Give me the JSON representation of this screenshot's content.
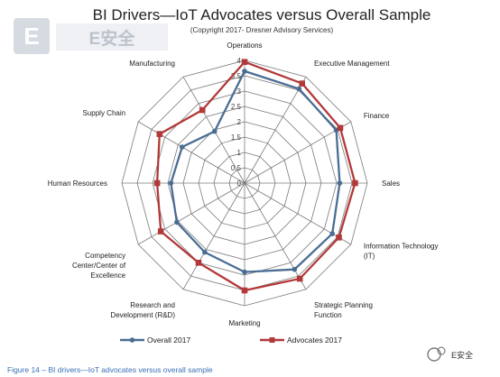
{
  "chart_data": {
    "type": "radar",
    "title": "BI Drivers—IoT Advocates versus Overall Sample",
    "subtitle": "(Copyright 2017- Dresner Advisory Services)",
    "categories": [
      "Operations",
      "Executive Management",
      "Finance",
      "Sales",
      "Information Technology (IT)",
      "Strategic Planning Function",
      "Marketing",
      "Research and Development (R&D)",
      "Competency Center/Center of Excellence",
      "Human Resources",
      "Supply Chain",
      "Manufacturing"
    ],
    "category_lines": [
      [
        "Operations"
      ],
      [
        "Executive Management"
      ],
      [
        "Finance"
      ],
      [
        "Sales"
      ],
      [
        "Information Technology",
        "(IT)"
      ],
      [
        "Strategic Planning",
        "Function"
      ],
      [
        "Marketing"
      ],
      [
        "Research and",
        "Development (R&D)"
      ],
      [
        "Competency",
        "Center/Center of",
        "Excellence"
      ],
      [
        "Human Resources"
      ],
      [
        "Supply Chain"
      ],
      [
        "Manufacturing"
      ]
    ],
    "r_ticks": [
      "0",
      "0.5",
      "1",
      "1.5",
      "2",
      "2.5",
      "3",
      "3.5",
      "4"
    ],
    "r_range": [
      0,
      4
    ],
    "series": [
      {
        "name": "Overall 2017",
        "color": "#4a6d93",
        "marker": "circle",
        "values": [
          3.65,
          3.55,
          3.45,
          3.1,
          3.3,
          3.25,
          2.9,
          2.6,
          2.55,
          2.4,
          2.35,
          1.95
        ]
      },
      {
        "name": "Advocates 2017",
        "color": "#b2393a",
        "marker": "square",
        "values": [
          3.95,
          3.75,
          3.6,
          3.6,
          3.55,
          3.6,
          3.5,
          3.0,
          3.15,
          2.85,
          3.2,
          2.75
        ]
      }
    ],
    "grid": true,
    "legend_position": "bottom"
  },
  "caption": "Figure 14 – BI drivers—IoT advocates versus overall sample",
  "watermark": {
    "logo_letter": "E",
    "logo_text": "E安全",
    "corner_text": "E安全"
  }
}
